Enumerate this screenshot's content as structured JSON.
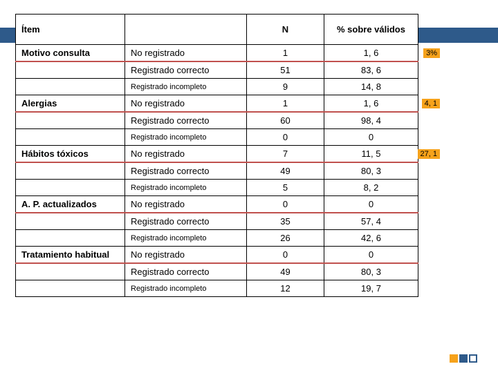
{
  "colors": {
    "header_band": "#2e5a8a",
    "underline": "#c0504d",
    "tag_bg": "#f6a21b",
    "border": "#000000",
    "bg": "#ffffff"
  },
  "headers": {
    "item": "Ítem",
    "blank": "",
    "n": "N",
    "pct": "% sobre válidos"
  },
  "status_labels": {
    "no_reg": "No registrado",
    "reg_correcto": "Registrado correcto",
    "reg_incompleto": "Registrado incompleto"
  },
  "groups": [
    {
      "item": "Motivo consulta",
      "rows": [
        {
          "kind": "no_reg",
          "n": "1",
          "pct": "1, 6",
          "tag": "3%"
        },
        {
          "kind": "reg_correcto",
          "n": "51",
          "pct": "83, 6"
        },
        {
          "kind": "reg_incompleto",
          "n": "9",
          "pct": "14, 8"
        }
      ]
    },
    {
      "item": "Alergias",
      "rows": [
        {
          "kind": "no_reg",
          "n": "1",
          "pct": "1, 6",
          "tag": "4, 1"
        },
        {
          "kind": "reg_correcto",
          "n": "60",
          "pct": "98, 4"
        },
        {
          "kind": "reg_incompleto",
          "n": "0",
          "pct": "0"
        }
      ]
    },
    {
      "item": "Hábitos tóxicos",
      "rows": [
        {
          "kind": "no_reg",
          "n": "7",
          "pct": "11, 5",
          "tag": "27, 1"
        },
        {
          "kind": "reg_correcto",
          "n": "49",
          "pct": "80, 3"
        },
        {
          "kind": "reg_incompleto",
          "n": "5",
          "pct": "8, 2"
        }
      ]
    },
    {
      "item": "A. P. actualizados",
      "rows": [
        {
          "kind": "no_reg",
          "n": "0",
          "pct": "0"
        },
        {
          "kind": "reg_correcto",
          "n": "35",
          "pct": "57, 4"
        },
        {
          "kind": "reg_incompleto",
          "n": "26",
          "pct": "42, 6"
        }
      ]
    },
    {
      "item": "Tratamiento habitual",
      "rows": [
        {
          "kind": "no_reg",
          "n": "0",
          "pct": "0"
        },
        {
          "kind": "reg_correcto",
          "n": "49",
          "pct": "80, 3"
        },
        {
          "kind": "reg_incompleto",
          "n": "12",
          "pct": "19, 7"
        }
      ]
    }
  ]
}
